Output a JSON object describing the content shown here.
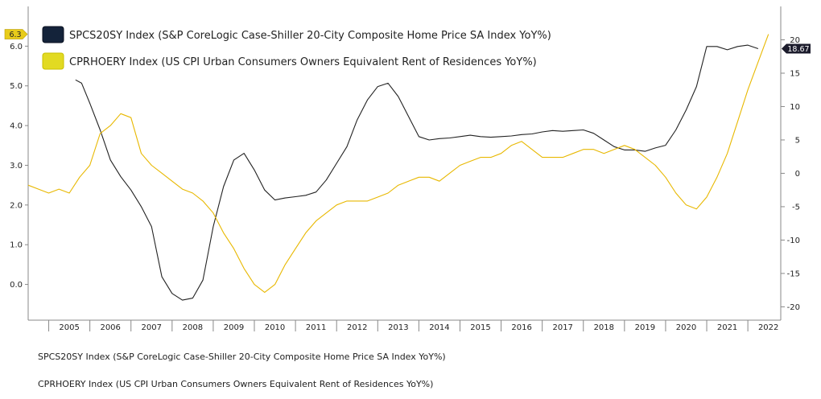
{
  "chart_data": {
    "type": "line",
    "title": "",
    "legend_position": "top-left",
    "x_range": [
      2004.5,
      2022.8
    ],
    "x_ticks": [
      "2005",
      "2006",
      "2007",
      "2008",
      "2009",
      "2010",
      "2011",
      "2012",
      "2013",
      "2014",
      "2015",
      "2016",
      "2017",
      "2018",
      "2019",
      "2020",
      "2021",
      "2022"
    ],
    "left_axis": {
      "ylim": [
        -0.9,
        7.0
      ],
      "ticks": [
        "0.0",
        "1.0",
        "2.0",
        "3.0",
        "4.0",
        "5.0",
        "6.0"
      ]
    },
    "right_axis": {
      "ylim": [
        -22,
        25
      ],
      "ticks": [
        "-20",
        "-15",
        "-10",
        "-5",
        "0",
        "5",
        "10",
        "15",
        "20"
      ]
    },
    "series": [
      {
        "name": "SPCS20SY Index (S&P CoreLogic Case-Shiller 20-City Composite Home Price SA Index YoY%)",
        "color": "#222222",
        "axis": "right",
        "last_value_label": "18.67",
        "x": [
          2005.65,
          2005.8,
          2006.0,
          2006.25,
          2006.5,
          2006.75,
          2007.0,
          2007.25,
          2007.5,
          2007.75,
          2008.0,
          2008.25,
          2008.5,
          2008.75,
          2009.0,
          2009.25,
          2009.5,
          2009.75,
          2010.0,
          2010.25,
          2010.5,
          2010.75,
          2011.0,
          2011.25,
          2011.5,
          2011.75,
          2012.0,
          2012.25,
          2012.5,
          2012.75,
          2013.0,
          2013.25,
          2013.5,
          2013.75,
          2014.0,
          2014.25,
          2014.5,
          2014.75,
          2015.0,
          2015.25,
          2015.5,
          2015.75,
          2016.0,
          2016.25,
          2016.5,
          2016.75,
          2017.0,
          2017.25,
          2017.5,
          2017.75,
          2018.0,
          2018.25,
          2018.5,
          2018.75,
          2019.0,
          2019.25,
          2019.5,
          2019.75,
          2020.0,
          2020.25,
          2020.5,
          2020.75,
          2021.0,
          2021.25,
          2021.5,
          2021.75,
          2022.0,
          2022.25
        ],
        "y": [
          14.0,
          13.5,
          10.5,
          6.5,
          2.0,
          -0.5,
          -2.5,
          -5.0,
          -8.0,
          -15.5,
          -18.0,
          -19.0,
          -18.7,
          -16.0,
          -8.0,
          -2.0,
          2.0,
          3.0,
          0.5,
          -2.5,
          -4.0,
          -3.7,
          -3.5,
          -3.3,
          -2.8,
          -1.0,
          1.5,
          4.0,
          8.0,
          11.0,
          13.0,
          13.5,
          11.5,
          8.5,
          5.5,
          5.0,
          5.2,
          5.3,
          5.5,
          5.7,
          5.5,
          5.4,
          5.5,
          5.6,
          5.8,
          5.9,
          6.2,
          6.4,
          6.3,
          6.4,
          6.5,
          6.0,
          5.0,
          4.0,
          3.5,
          3.5,
          3.3,
          3.8,
          4.2,
          6.5,
          9.5,
          13.0,
          19.0,
          19.0,
          18.5,
          19.0,
          19.2,
          18.67
        ]
      },
      {
        "name": "CPRHOERY Index (US CPI Urban Consumers Owners Equivalent Rent of Residences YoY%)",
        "color": "#e8b800",
        "axis": "left",
        "last_value_label": "6.3",
        "x": [
          2004.5,
          2004.75,
          2005.0,
          2005.25,
          2005.5,
          2005.75,
          2006.0,
          2006.25,
          2006.5,
          2006.75,
          2007.0,
          2007.25,
          2007.5,
          2007.75,
          2008.0,
          2008.25,
          2008.5,
          2008.75,
          2009.0,
          2009.25,
          2009.5,
          2009.75,
          2010.0,
          2010.25,
          2010.5,
          2010.75,
          2011.0,
          2011.25,
          2011.5,
          2011.75,
          2012.0,
          2012.25,
          2012.5,
          2012.75,
          2013.0,
          2013.25,
          2013.5,
          2013.75,
          2014.0,
          2014.25,
          2014.5,
          2014.75,
          2015.0,
          2015.25,
          2015.5,
          2015.75,
          2016.0,
          2016.25,
          2016.5,
          2016.75,
          2017.0,
          2017.25,
          2017.5,
          2017.75,
          2018.0,
          2018.25,
          2018.5,
          2018.75,
          2019.0,
          2019.25,
          2019.5,
          2019.75,
          2020.0,
          2020.25,
          2020.5,
          2020.75,
          2021.0,
          2021.25,
          2021.5,
          2021.75,
          2022.0,
          2022.25,
          2022.5
        ],
        "y": [
          2.5,
          2.4,
          2.3,
          2.4,
          2.3,
          2.7,
          3.0,
          3.8,
          4.0,
          4.3,
          4.2,
          3.3,
          3.0,
          2.8,
          2.6,
          2.4,
          2.3,
          2.1,
          1.8,
          1.3,
          0.9,
          0.4,
          0.0,
          -0.2,
          0.0,
          0.5,
          0.9,
          1.3,
          1.6,
          1.8,
          2.0,
          2.1,
          2.1,
          2.1,
          2.2,
          2.3,
          2.5,
          2.6,
          2.7,
          2.7,
          2.6,
          2.8,
          3.0,
          3.1,
          3.2,
          3.2,
          3.3,
          3.5,
          3.6,
          3.4,
          3.2,
          3.2,
          3.2,
          3.3,
          3.4,
          3.4,
          3.3,
          3.4,
          3.5,
          3.4,
          3.2,
          3.0,
          2.7,
          2.3,
          2.0,
          1.9,
          2.2,
          2.7,
          3.3,
          4.1,
          4.9,
          5.6,
          6.3
        ]
      }
    ]
  },
  "footer": {
    "line1": "SPCS20SY Index (S&P CoreLogic Case-Shiller 20-City Composite Home Price SA Index YoY%)",
    "line2": "CPRHOERY Index (US CPI Urban Consumers Owners Equivalent Rent of Residences YoY%)"
  }
}
